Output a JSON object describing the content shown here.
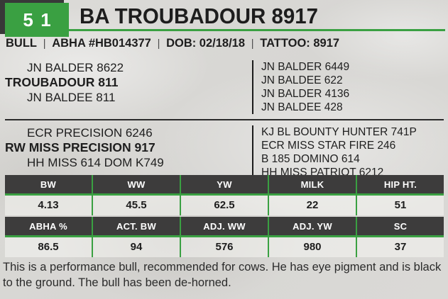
{
  "card": {
    "lot_number": "51",
    "title": "BA TROUBADOUR 8917"
  },
  "info_bar": {
    "separator": "|",
    "items": [
      "BULL",
      "ABHA #HB014377",
      "DOB: 02/18/18",
      "TATTOO: 8917"
    ]
  },
  "pedigree": {
    "sire_line": {
      "grandsire": "JN BALDER 8622",
      "name": "TROUBADOUR 811",
      "granddam": "JN BALDEE 811",
      "ancestors": [
        "JN BALDER 6449",
        "JN BALDEE 622",
        "JN BALDER 4136",
        "JN BALDEE 428"
      ]
    },
    "dam_line": {
      "grandsire": "ECR PRECISION 6246",
      "name": "RW MISS PRECISION 917",
      "granddam": "HH MISS 614 DOM K749",
      "ancestors": [
        "KJ BL BOUNTY HUNTER 741P",
        "ECR MISS STAR FIRE 246",
        "B 185 DOMINO 614",
        "HH MISS PATRIOT 6212"
      ]
    }
  },
  "epd_table": {
    "headers": [
      "BW",
      "WW",
      "YW",
      "MILK",
      "HIP HT."
    ],
    "values": [
      "4.13",
      "45.5",
      "62.5",
      "22",
      "51"
    ]
  },
  "perf_table": {
    "headers": [
      "ABHA %",
      "ACT. BW",
      "ADJ. WW",
      "ADJ. YW",
      "SC"
    ],
    "values": [
      "86.5",
      "94",
      "576",
      "980",
      "37"
    ]
  },
  "footer": {
    "note": "This is a performance bull, recommended for cows. He has eye pigment and is black to the ground. The bull has been de-horned."
  },
  "colors": {
    "accent_green": "#3aa042",
    "header_charcoal": "#3d3c3c",
    "badge_shadow": "#383838",
    "text_dark": "#1d1d1d",
    "background": "#d9d8d5"
  }
}
